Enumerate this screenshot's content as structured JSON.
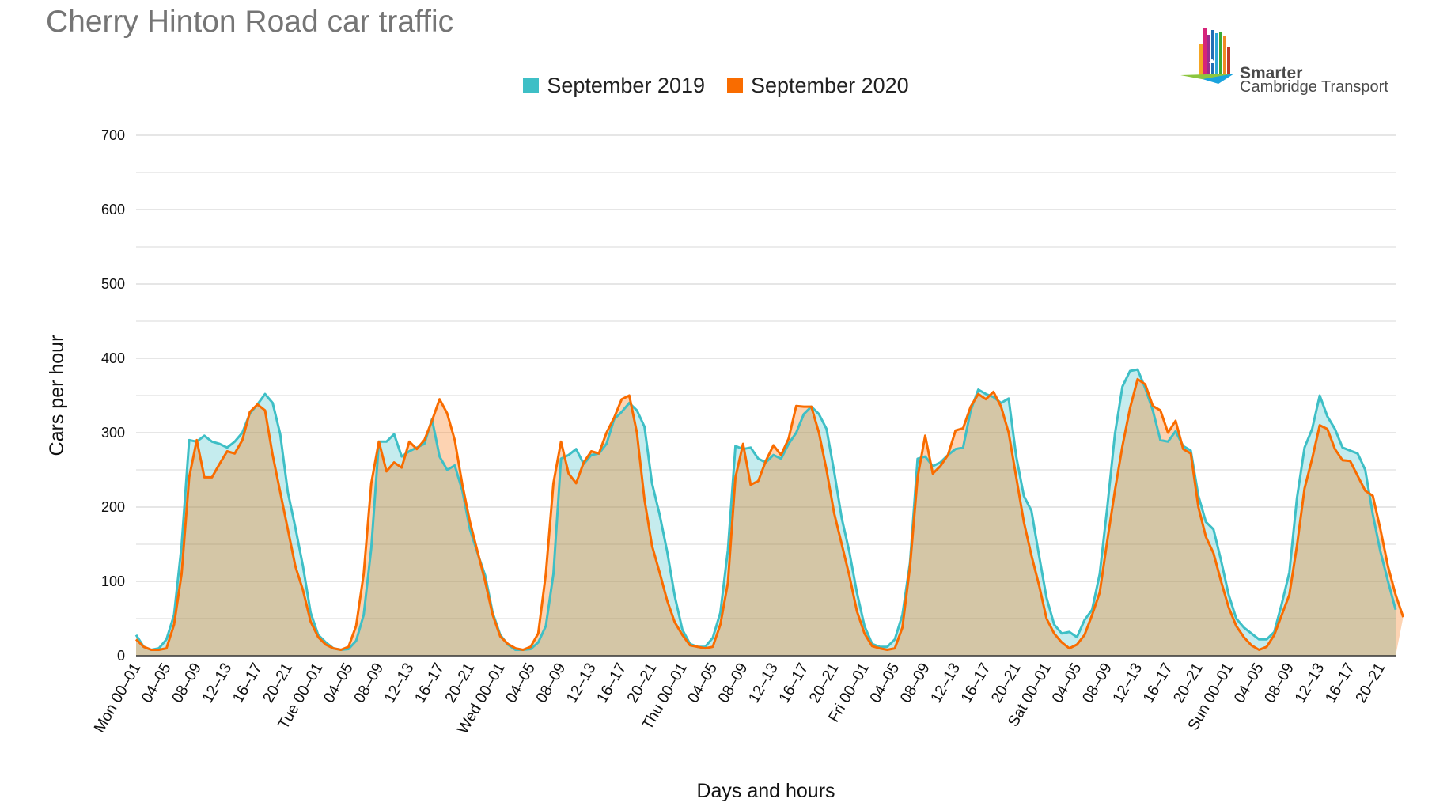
{
  "title": "Cherry Hinton Road car traffic",
  "logo": {
    "line1": "Smarter",
    "line2": "Cambridge Transport"
  },
  "colors": {
    "s2019": "#3ebfc6",
    "s2020": "#f96c00",
    "grid": "#d8d8d8"
  },
  "chart_data": {
    "type": "area",
    "title": "Cherry Hinton Road car traffic",
    "xlabel": "Days and hours",
    "ylabel": "Cars per hour",
    "ylim": [
      0,
      700
    ],
    "yticks": [
      0,
      100,
      200,
      300,
      400,
      500,
      600,
      700
    ],
    "grid": true,
    "legend_position": "top-center",
    "x_tick_labels": [
      "Mon 00–01",
      "04–05",
      "08–09",
      "12–13",
      "16–17",
      "20–21",
      "Tue 00–01",
      "04–05",
      "08–09",
      "12–13",
      "16–17",
      "20–21",
      "Wed 00–01",
      "04–05",
      "08–09",
      "12–13",
      "16–17",
      "20–21",
      "Thu 00–01",
      "04–05",
      "08–09",
      "12–13",
      "16–17",
      "20–21",
      "Fri 00–01",
      "04–05",
      "08–09",
      "12–13",
      "16–17",
      "20–21",
      "Sat 00–01",
      "04–05",
      "08–09",
      "12–13",
      "16–17",
      "20–21",
      "Sun 00–01",
      "04–05",
      "08–09",
      "12–13",
      "16–17",
      "20–21"
    ],
    "series": [
      {
        "name": "September 2019",
        "values": [
          28,
          12,
          8,
          10,
          22,
          55,
          148,
          290,
          288,
          296,
          288,
          285,
          280,
          288,
          300,
          326,
          338,
          352,
          340,
          298,
          220,
          172,
          120,
          58,
          28,
          18,
          10,
          8,
          9,
          20,
          55,
          145,
          288,
          288,
          298,
          268,
          275,
          280,
          285,
          318,
          268,
          250,
          256,
          222,
          170,
          138,
          108,
          58,
          28,
          15,
          8,
          8,
          9,
          18,
          40,
          110,
          265,
          270,
          278,
          258,
          270,
          272,
          285,
          318,
          328,
          340,
          330,
          308,
          232,
          190,
          140,
          80,
          35,
          16,
          12,
          12,
          24,
          58,
          142,
          282,
          278,
          280,
          265,
          260,
          270,
          265,
          285,
          300,
          325,
          335,
          325,
          305,
          248,
          185,
          140,
          85,
          40,
          16,
          12,
          12,
          22,
          55,
          125,
          265,
          268,
          255,
          260,
          270,
          278,
          280,
          330,
          358,
          352,
          348,
          340,
          346,
          268,
          215,
          195,
          135,
          78,
          42,
          30,
          32,
          25,
          48,
          62,
          110,
          200,
          298,
          362,
          383,
          385,
          360,
          330,
          290,
          288,
          302,
          282,
          276,
          215,
          180,
          170,
          128,
          82,
          50,
          38,
          30,
          22,
          22,
          32,
          70,
          112,
          212,
          280,
          305,
          350,
          322,
          305,
          280,
          276,
          272,
          250,
          190,
          140,
          100,
          62
        ]
      },
      {
        "name": "September 2020",
        "values": [
          22,
          12,
          8,
          8,
          10,
          42,
          110,
          240,
          290,
          240,
          240,
          258,
          275,
          272,
          290,
          328,
          338,
          330,
          270,
          220,
          170,
          120,
          88,
          46,
          25,
          15,
          10,
          8,
          12,
          40,
          110,
          232,
          288,
          248,
          260,
          253,
          288,
          278,
          290,
          316,
          345,
          326,
          290,
          230,
          180,
          140,
          100,
          55,
          26,
          16,
          10,
          8,
          12,
          30,
          110,
          232,
          288,
          245,
          232,
          260,
          275,
          272,
          300,
          320,
          345,
          350,
          300,
          210,
          148,
          112,
          74,
          45,
          28,
          14,
          12,
          10,
          12,
          42,
          98,
          240,
          285,
          230,
          235,
          262,
          283,
          270,
          292,
          336,
          335,
          335,
          300,
          250,
          192,
          150,
          108,
          60,
          30,
          13,
          10,
          8,
          10,
          38,
          120,
          240,
          296,
          245,
          255,
          270,
          303,
          306,
          335,
          352,
          345,
          355,
          335,
          300,
          240,
          180,
          135,
          95,
          50,
          30,
          18,
          10,
          15,
          28,
          55,
          85,
          155,
          222,
          282,
          333,
          372,
          365,
          336,
          330,
          300,
          316,
          278,
          272,
          200,
          160,
          138,
          100,
          65,
          40,
          25,
          14,
          8,
          12,
          28,
          55,
          82,
          148,
          225,
          265,
          310,
          305,
          278,
          263,
          262,
          242,
          222,
          215,
          170,
          120,
          82,
          52
        ]
      }
    ]
  }
}
